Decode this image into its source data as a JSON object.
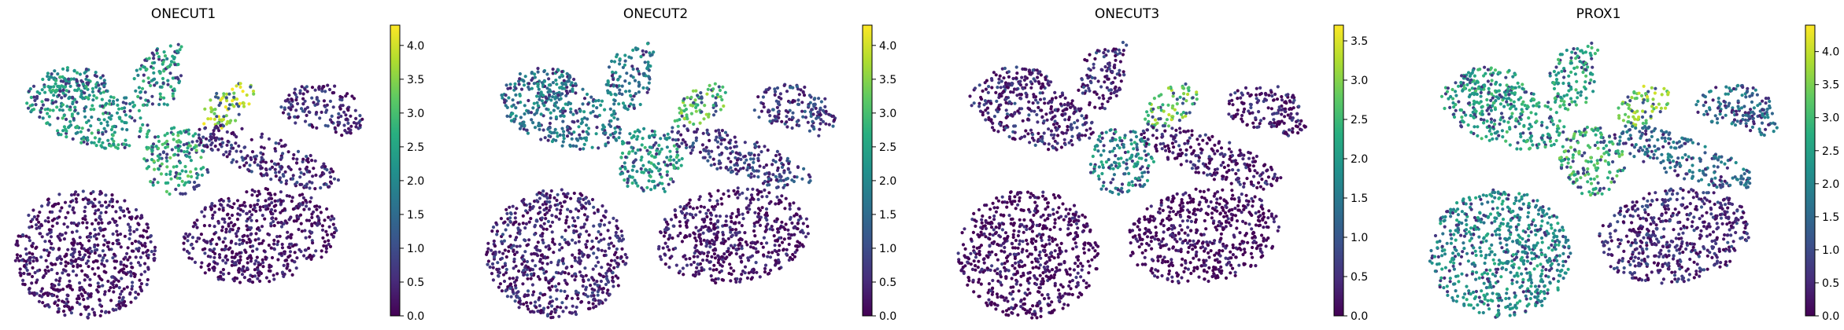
{
  "chart_data": [
    {
      "type": "scatter",
      "title": "ONECUT1",
      "colorbar": {
        "colormap": "viridis",
        "range": [
          0,
          4.3
        ],
        "ticks": [
          "0.0",
          "0.5",
          "1.0",
          "1.5",
          "2.0",
          "2.5",
          "3.0",
          "3.5",
          "4.0"
        ]
      },
      "grid": false,
      "axes_visible": false,
      "cluster_levels": {
        "top_left_lobe": 2.4,
        "upper_right_lobe": 3.8,
        "center_stalk": 2.8,
        "bottom_left_lobe": 0.3,
        "bottom_right_lobe": 0.25,
        "right_branch": 0.6
      }
    },
    {
      "type": "scatter",
      "title": "ONECUT2",
      "colorbar": {
        "colormap": "viridis",
        "range": [
          0,
          4.3
        ],
        "ticks": [
          "0.0",
          "0.5",
          "1.0",
          "1.5",
          "2.0",
          "2.5",
          "3.0",
          "3.5",
          "4.0"
        ]
      },
      "grid": false,
      "axes_visible": false,
      "cluster_levels": {
        "top_left_lobe": 1.8,
        "upper_right_lobe": 3.2,
        "center_stalk": 2.4,
        "bottom_left_lobe": 0.5,
        "bottom_right_lobe": 0.3,
        "right_branch": 0.9
      }
    },
    {
      "type": "scatter",
      "title": "ONECUT3",
      "colorbar": {
        "colormap": "viridis",
        "range": [
          0,
          3.7
        ],
        "ticks": [
          "0.0",
          "0.5",
          "1.0",
          "1.5",
          "2.0",
          "2.5",
          "3.0",
          "3.5"
        ]
      },
      "grid": false,
      "axes_visible": false,
      "cluster_levels": {
        "top_left_lobe": 0.5,
        "upper_right_lobe": 2.8,
        "center_stalk": 1.8,
        "bottom_left_lobe": 0.1,
        "bottom_right_lobe": 0.05,
        "right_branch": 0.3
      }
    },
    {
      "type": "scatter",
      "title": "PROX1",
      "colorbar": {
        "colormap": "viridis",
        "range": [
          0,
          4.4
        ],
        "ticks": [
          "0.0",
          "0.5",
          "1.0",
          "1.5",
          "2.0",
          "2.5",
          "3.0",
          "3.5",
          "4.0"
        ]
      },
      "grid": false,
      "axes_visible": false,
      "cluster_levels": {
        "top_left_lobe": 2.6,
        "upper_right_lobe": 3.6,
        "center_stalk": 3.0,
        "bottom_left_lobe": 2.2,
        "bottom_right_lobe": 0.6,
        "right_branch": 1.6
      }
    }
  ]
}
